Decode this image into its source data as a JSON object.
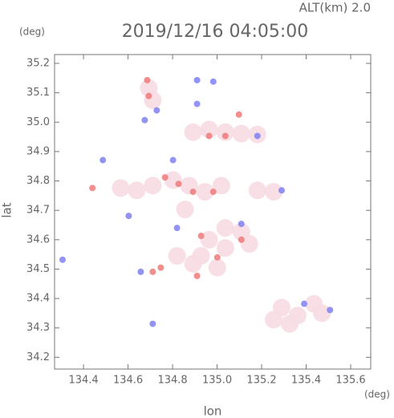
{
  "chart_data": {
    "type": "scatter",
    "title": "2019/12/16 04:05:00",
    "subtitle": "ALT(km) 2.0",
    "y_unit": "(deg)",
    "x_unit": "(deg)",
    "xlabel": "lon",
    "ylabel": "lat",
    "xlim": [
      134.27,
      135.69
    ],
    "ylim": [
      34.16,
      35.23
    ],
    "xticks": [
      134.4,
      134.6,
      134.8,
      {
        "value": 135,
        "label": "135.0"
      },
      135.2,
      135.4,
      135.6
    ],
    "yticks": [
      34.2,
      34.3,
      34.4,
      34.5,
      34.6,
      34.7,
      34.8,
      34.9,
      {
        "value": 35,
        "label": "35.0"
      },
      35.1,
      35.2
    ],
    "series": [
      {
        "color": "#f6dce2",
        "x": [
          134.693,
          134.711,
          134.892,
          134.964,
          135.037,
          135.109,
          135.181,
          134.567,
          134.639,
          134.711,
          134.802,
          134.874,
          134.946,
          135.019,
          135.181,
          135.254,
          134.856,
          135.037,
          135.109,
          134.964,
          134.82,
          134.928,
          135.037,
          135.145,
          134.892,
          135.001,
          135.29,
          135.362,
          135.435,
          135.326,
          135.254,
          135.471
        ],
        "y": [
          35.116,
          35.075,
          34.966,
          34.975,
          34.966,
          34.961,
          34.958,
          34.776,
          34.768,
          34.784,
          34.803,
          34.784,
          34.763,
          34.784,
          34.768,
          34.763,
          34.703,
          34.64,
          34.627,
          34.6,
          34.545,
          34.545,
          34.572,
          34.586,
          34.518,
          34.505,
          34.369,
          34.342,
          34.382,
          34.314,
          34.328,
          34.35
        ]
      },
      {
        "color": "#f07a7a",
        "x": [
          134.693,
          134.686,
          135.098,
          134.44,
          134.766,
          134.827,
          134.892,
          134.964,
          135.037,
          134.747,
          134.711,
          134.91,
          134.983,
          135.109,
          134.928,
          135.001
        ],
        "y": [
          35.089,
          35.143,
          35.026,
          34.776,
          34.812,
          34.79,
          34.763,
          34.953,
          34.953,
          34.505,
          34.491,
          34.477,
          34.763,
          34.6,
          34.613,
          34.54
        ]
      },
      {
        "color": "#8080f4",
        "x": [
          134.487,
          134.675,
          134.729,
          134.91,
          134.983,
          134.657,
          134.306,
          134.711,
          135.391,
          135.507,
          135.29,
          135.181,
          135.109,
          134.603,
          134.82,
          134.91,
          134.802
        ],
        "y": [
          34.871,
          35.007,
          35.04,
          35.143,
          35.138,
          34.491,
          34.532,
          34.314,
          34.382,
          34.361,
          34.768,
          34.953,
          34.654,
          34.681,
          34.64,
          35.062,
          34.871
        ]
      }
    ]
  }
}
